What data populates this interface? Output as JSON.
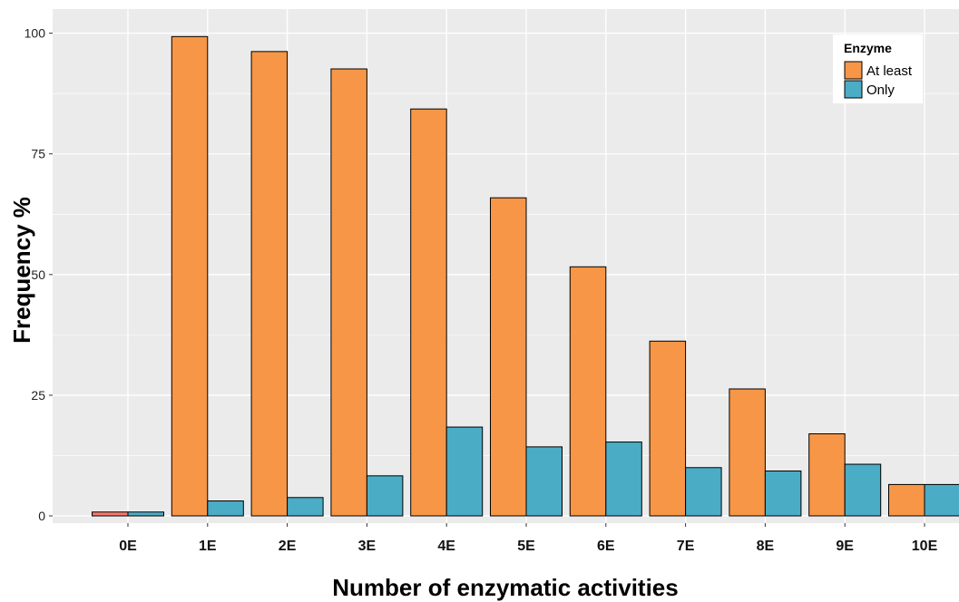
{
  "colors": {
    "at_least": "#F79646",
    "only": "#4BACC6",
    "zero_left": "#F8766D",
    "panel_bg": "#EBEBEB",
    "grid": "#FFFFFF",
    "bar_stroke": "#000000"
  },
  "chart_data": {
    "type": "bar",
    "title": "",
    "xlabel": "Number of enzymatic activities",
    "ylabel": "Frequency %",
    "ylim": [
      -1.5,
      105
    ],
    "yticks": [
      0,
      25,
      50,
      75,
      100
    ],
    "categories": [
      "0E",
      "1E",
      "2E",
      "3E",
      "4E",
      "5E",
      "6E",
      "7E",
      "8E",
      "9E",
      "10E"
    ],
    "legend": {
      "title": "Enzyme",
      "position": "top-right",
      "entries": [
        "At least",
        "Only"
      ]
    },
    "series": [
      {
        "name": "At least",
        "values": [
          0.8,
          99.3,
          96.2,
          92.6,
          84.3,
          65.9,
          51.6,
          36.2,
          26.3,
          17.0,
          6.5
        ]
      },
      {
        "name": "Only",
        "values": [
          0.8,
          3.1,
          3.8,
          8.3,
          18.4,
          14.3,
          15.3,
          10.0,
          9.3,
          10.7,
          6.5
        ]
      }
    ],
    "grid": true
  }
}
